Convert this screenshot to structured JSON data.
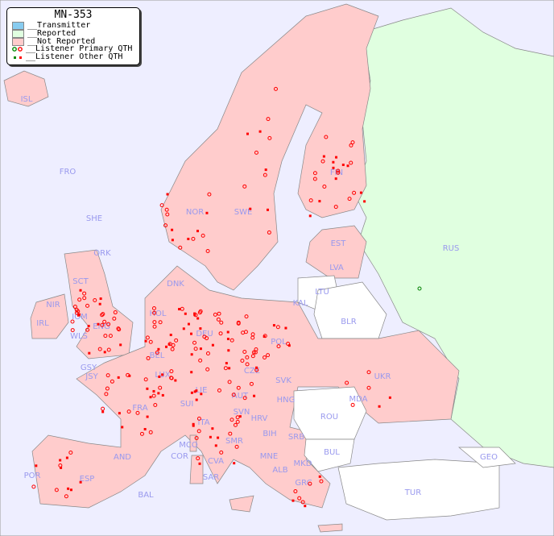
{
  "legend": {
    "title": "MN-353",
    "items": [
      {
        "label": "__Transmitter",
        "color": "#88ccf0"
      },
      {
        "label": "__Reported",
        "color": "#e0ffe0"
      },
      {
        "label": "__Not Reported",
        "color": "#ffcccc"
      },
      {
        "label": "__Listener Primary QTH",
        "marker": "circle"
      },
      {
        "label": "__Listener Other QTH",
        "marker": "square"
      }
    ]
  },
  "colors": {
    "background": "#eeeeff",
    "not_reported": "#ffcccc",
    "reported": "#e0ffe0",
    "no_data": "#ffffff",
    "marker": "#ff0000",
    "marker_alt": "#008000",
    "label": "#9999ee"
  },
  "countries": [
    "ISL",
    "FRO",
    "SHE",
    "ORK",
    "NOR",
    "SWE",
    "FIN",
    "RUS",
    "EST",
    "LVA",
    "LTU",
    "KAL",
    "BLR",
    "DNK",
    "HOL",
    "DEU",
    "POL",
    "UKR",
    "NIR",
    "IRL",
    "IOM",
    "SCT",
    "WLS",
    "ENG",
    "GSY",
    "JSY",
    "BEL",
    "LUX",
    "CZE",
    "SVK",
    "AUT",
    "HNG",
    "MDA",
    "FRA",
    "SUI",
    "LIE",
    "SVN",
    "HRV",
    "ROU",
    "ITA",
    "BIH",
    "SRB",
    "MCO",
    "COR",
    "SMR",
    "BUL",
    "MNE",
    "AND",
    "CVA",
    "MKD",
    "GEO",
    "ALB",
    "POR",
    "ESP",
    "SAR",
    "GRC",
    "TUR",
    "BAL"
  ]
}
